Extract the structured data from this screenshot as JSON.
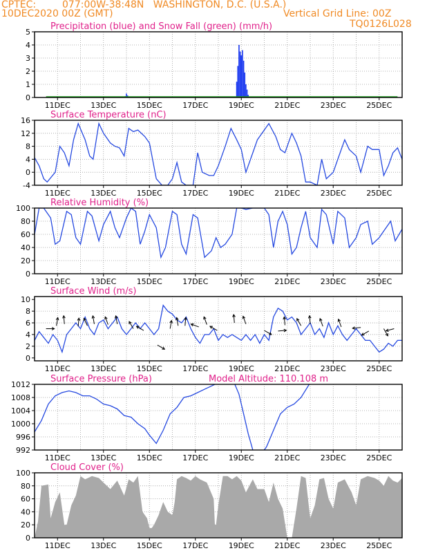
{
  "header": {
    "source": "CPTEC:",
    "location": "077:00W-38:48N   WASHINGTON, D.C. (U.S.A.)",
    "init_time": "10DEC2020 00Z (GMT)",
    "grid_note": "Vertical Grid Line: 00Z",
    "model": "TQ0126L028"
  },
  "colors": {
    "header": "#f08a24",
    "title": "#e0208a",
    "precip": "#1e3cf0",
    "snow": "#1aa01a",
    "line": "#2448e0",
    "cloud": "#a9a9a9"
  },
  "chart_data": [
    {
      "id": "precip",
      "type": "bar",
      "title": "Precipitation (blue) and Snow Fall (green) (mm/h)",
      "x_ticks": [
        "11DEC",
        "13DEC",
        "15DEC",
        "17DEC",
        "19DEC",
        "21DEC",
        "23DEC",
        "25DEC"
      ],
      "ylim": [
        0,
        5
      ],
      "yticks": [
        0,
        1,
        2,
        3,
        4,
        5
      ],
      "grid": true,
      "series": [
        {
          "name": "Precipitation",
          "color": "#1e3cf0",
          "x": [
            3.95,
            4.0,
            4.05,
            8.8,
            8.85,
            8.9,
            8.95,
            9.0,
            9.05,
            9.1,
            9.15,
            9.2,
            9.25,
            9.3
          ],
          "values": [
            0.1,
            0.3,
            0.15,
            1.2,
            2.4,
            4.0,
            3.5,
            3.2,
            3.6,
            2.8,
            1.9,
            1.0,
            0.6,
            0.2
          ]
        },
        {
          "name": "Snow Fall",
          "color": "#1aa01a",
          "x": [
            0.5,
            15.8
          ],
          "values": [
            0.05,
            0.05
          ]
        }
      ]
    },
    {
      "id": "temperature",
      "type": "line",
      "title": "Surface Temperature (nC)",
      "x_ticks": [
        "11DEC",
        "13DEC",
        "15DEC",
        "17DEC",
        "19DEC",
        "21DEC",
        "23DEC",
        "25DEC"
      ],
      "ylim": [
        -4,
        16
      ],
      "yticks": [
        -4,
        0,
        4,
        8,
        12,
        16
      ],
      "grid": true,
      "series": [
        {
          "name": "Temperature",
          "x": [
            0,
            0.2,
            0.4,
            0.55,
            0.9,
            1.1,
            1.3,
            1.5,
            1.7,
            1.9,
            2.2,
            2.4,
            2.55,
            2.8,
            3.0,
            3.3,
            3.5,
            3.7,
            3.9,
            4.1,
            4.3,
            4.5,
            4.8,
            5.0,
            5.3,
            5.55,
            5.8,
            6.0,
            6.2,
            6.4,
            6.6,
            6.9,
            7.1,
            7.3,
            7.6,
            7.8,
            8.0,
            8.3,
            8.55,
            8.8,
            9.0,
            9.2,
            9.5,
            9.7,
            9.9,
            10.2,
            10.5,
            10.7,
            10.9,
            11.2,
            11.4,
            11.6,
            11.8,
            12.0,
            12.3,
            12.5,
            12.7,
            13.0,
            13.2,
            13.5,
            13.7,
            14.0,
            14.2,
            14.5,
            14.7,
            15.0,
            15.2,
            15.4,
            15.6,
            15.8,
            16.0
          ],
          "values": [
            4.5,
            2,
            -2,
            -3,
            0,
            8,
            6,
            2,
            10,
            15,
            10,
            5,
            4,
            15,
            12,
            9,
            8,
            7.5,
            5,
            13.5,
            12.5,
            13,
            11,
            9,
            -2,
            -4,
            -4,
            -2,
            3,
            -3,
            -4,
            -4,
            6,
            0,
            -1,
            -1,
            2,
            8,
            13.5,
            10,
            7,
            0,
            6,
            10,
            12,
            15,
            11,
            7,
            6,
            12,
            9,
            5,
            -3,
            -3,
            -4,
            4,
            -2,
            0,
            4,
            10,
            7,
            5,
            0,
            8,
            7,
            7,
            -1,
            2,
            6,
            7.5,
            4
          ]
        }
      ]
    },
    {
      "id": "humidity",
      "type": "line",
      "title": "Relative Humidity (%)",
      "x_ticks": [
        "11DEC",
        "13DEC",
        "15DEC",
        "17DEC",
        "19DEC",
        "21DEC",
        "23DEC",
        "25DEC"
      ],
      "ylim": [
        0,
        100
      ],
      "yticks": [
        0,
        20,
        40,
        60,
        80,
        100
      ],
      "grid": true,
      "series": [
        {
          "name": "Relative Humidity",
          "x": [
            0,
            0.2,
            0.4,
            0.7,
            0.9,
            1.1,
            1.4,
            1.6,
            1.8,
            2.0,
            2.3,
            2.5,
            2.8,
            3.0,
            3.3,
            3.5,
            3.7,
            4.0,
            4.2,
            4.4,
            4.6,
            4.8,
            5.0,
            5.3,
            5.5,
            5.7,
            6.0,
            6.2,
            6.4,
            6.6,
            6.9,
            7.1,
            7.4,
            7.7,
            7.9,
            8.1,
            8.3,
            8.6,
            8.8,
            9.0,
            9.2,
            9.5,
            9.7,
            10.0,
            10.2,
            10.4,
            10.6,
            10.8,
            11.0,
            11.2,
            11.4,
            11.6,
            11.8,
            12.0,
            12.3,
            12.5,
            12.7,
            13.0,
            13.2,
            13.5,
            13.7,
            14.0,
            14.2,
            14.5,
            14.7,
            15.0,
            15.2,
            15.5,
            15.7,
            16.0
          ],
          "values": [
            60,
            100,
            100,
            85,
            45,
            50,
            95,
            90,
            55,
            45,
            95,
            88,
            50,
            75,
            95,
            70,
            55,
            85,
            100,
            95,
            45,
            65,
            90,
            70,
            25,
            40,
            95,
            90,
            45,
            30,
            90,
            85,
            25,
            35,
            55,
            40,
            45,
            60,
            100,
            100,
            98,
            100,
            100,
            100,
            90,
            40,
            80,
            95,
            75,
            30,
            40,
            70,
            95,
            55,
            40,
            98,
            90,
            45,
            95,
            85,
            40,
            55,
            75,
            80,
            45,
            55,
            65,
            80,
            50,
            68
          ]
        }
      ]
    },
    {
      "id": "wind",
      "type": "line",
      "title": "Surface Wind (m/s)",
      "x_ticks": [
        "11DEC",
        "13DEC",
        "15DEC",
        "17DEC",
        "19DEC",
        "21DEC",
        "23DEC",
        "25DEC"
      ],
      "ylim": [
        -0.5,
        10.5
      ],
      "yticks": [
        0,
        2,
        4,
        6,
        8,
        10
      ],
      "grid": true,
      "series": [
        {
          "name": "Wind Speed",
          "x": [
            0,
            0.2,
            0.4,
            0.6,
            0.8,
            1.0,
            1.2,
            1.4,
            1.6,
            1.8,
            2.0,
            2.2,
            2.4,
            2.6,
            2.8,
            3.0,
            3.2,
            3.4,
            3.6,
            3.8,
            4.0,
            4.2,
            4.4,
            4.6,
            4.8,
            5.0,
            5.2,
            5.4,
            5.6,
            5.8,
            6.0,
            6.2,
            6.4,
            6.6,
            6.8,
            7.0,
            7.2,
            7.4,
            7.6,
            7.8,
            8.0,
            8.2,
            8.4,
            8.6,
            8.8,
            9.0,
            9.2,
            9.4,
            9.6,
            9.8,
            10.0,
            10.2,
            10.4,
            10.6,
            10.8,
            11.0,
            11.2,
            11.4,
            11.6,
            11.8,
            12.0,
            12.2,
            12.4,
            12.6,
            12.8,
            13.0,
            13.2,
            13.4,
            13.6,
            13.8,
            14.0,
            14.2,
            14.4,
            14.6,
            14.8,
            15.0,
            15.2,
            15.4,
            15.6,
            15.8,
            16.0
          ],
          "values": [
            3,
            4.5,
            3.5,
            2.5,
            4,
            3,
            1,
            4,
            5,
            6,
            5,
            7,
            5,
            4,
            6,
            6.5,
            5,
            6,
            7,
            5,
            4,
            5,
            6,
            5,
            6,
            5,
            4,
            5,
            9,
            8,
            7.5,
            6.5,
            6,
            7,
            5,
            3.5,
            2.5,
            4,
            4,
            5,
            3,
            4,
            3.5,
            4,
            3.5,
            3,
            4,
            3,
            4,
            2.5,
            4,
            3,
            7,
            8.5,
            8,
            6.5,
            7,
            6,
            4,
            5,
            6,
            4,
            5,
            3.5,
            6,
            4,
            5.5,
            4,
            3,
            4,
            5,
            4,
            3,
            3,
            2,
            1,
            1.5,
            2.5,
            2,
            3,
            3
          ]
        }
      ],
      "arrows": [
        {
          "x": 0.5,
          "y": 5.0,
          "dir": 0
        },
        {
          "x": 0.95,
          "y": 5.5,
          "dir": 80
        },
        {
          "x": 1.3,
          "y": 5.8,
          "dir": 95
        },
        {
          "x": 1.9,
          "y": 5.4,
          "dir": 85
        },
        {
          "x": 2.3,
          "y": 5.5,
          "dir": 115
        },
        {
          "x": 2.6,
          "y": 5.8,
          "dir": 100
        },
        {
          "x": 3.2,
          "y": 5.7,
          "dir": 110
        },
        {
          "x": 3.6,
          "y": 5.8,
          "dir": 100
        },
        {
          "x": 4.3,
          "y": 5.0,
          "dir": 120
        },
        {
          "x": 4.75,
          "y": 4.7,
          "dir": 150
        },
        {
          "x": 5.35,
          "y": 2.2,
          "dir": 330
        },
        {
          "x": 5.9,
          "y": 5.0,
          "dir": 80
        },
        {
          "x": 6.25,
          "y": 5.5,
          "dir": 100
        },
        {
          "x": 6.55,
          "y": 5.5,
          "dir": 85
        },
        {
          "x": 7.15,
          "y": 5.3,
          "dir": 160
        },
        {
          "x": 7.5,
          "y": 5.7,
          "dir": 110
        },
        {
          "x": 7.95,
          "y": 4.7,
          "dir": 150
        },
        {
          "x": 8.7,
          "y": 6.0,
          "dir": 95
        },
        {
          "x": 9.2,
          "y": 5.8,
          "dir": 110
        },
        {
          "x": 10.0,
          "y": 4.7,
          "dir": 330
        },
        {
          "x": 10.6,
          "y": 4.6,
          "dir": 5
        },
        {
          "x": 10.9,
          "y": 5.6,
          "dir": 95
        },
        {
          "x": 11.6,
          "y": 5.5,
          "dir": 120
        },
        {
          "x": 12.0,
          "y": 5.8,
          "dir": 95
        },
        {
          "x": 12.55,
          "y": 5.4,
          "dir": 110
        },
        {
          "x": 13.35,
          "y": 5.3,
          "dir": 110
        },
        {
          "x": 14.2,
          "y": 5.2,
          "dir": 185
        },
        {
          "x": 14.55,
          "y": 4.6,
          "dir": 210
        },
        {
          "x": 15.2,
          "y": 5.0,
          "dir": 300
        },
        {
          "x": 15.65,
          "y": 5.0,
          "dir": 195
        }
      ]
    },
    {
      "id": "pressure",
      "type": "line",
      "title": "Surface Pressure (hPa)",
      "annotation": "Model Altitude: 110.108 m",
      "x_ticks": [
        "11DEC",
        "13DEC",
        "15DEC",
        "17DEC",
        "19DEC",
        "21DEC",
        "23DEC",
        "25DEC"
      ],
      "ylim": [
        992,
        1012
      ],
      "yticks": [
        992,
        996,
        1000,
        1004,
        1008,
        1012
      ],
      "grid": true,
      "series": [
        {
          "name": "Surface Pressure",
          "x": [
            0,
            0.3,
            0.6,
            0.9,
            1.2,
            1.5,
            1.8,
            2.1,
            2.4,
            2.7,
            3.0,
            3.3,
            3.6,
            3.9,
            4.2,
            4.5,
            4.8,
            5.0,
            5.3,
            5.6,
            5.9,
            6.2,
            6.5,
            6.8,
            7.1,
            7.4,
            7.7,
            8.0,
            8.3,
            8.6,
            8.9,
            9.1,
            9.3,
            9.5,
            9.8,
            10.1,
            10.4,
            10.7,
            11.0,
            11.3,
            11.6,
            12.0
          ],
          "values": [
            997.5,
            1001,
            1006,
            1008.5,
            1009.5,
            1010,
            1009.5,
            1008.5,
            1008.5,
            1007.5,
            1006,
            1005.5,
            1004.5,
            1002.5,
            1002,
            1000,
            998.5,
            996.5,
            994,
            998,
            1003,
            1005,
            1008,
            1008.5,
            1009.5,
            1010.5,
            1011.5,
            1012.5,
            1013.5,
            1014,
            1009,
            1003,
            997,
            992,
            990,
            993,
            998,
            1003,
            1005,
            1006,
            1008,
            1012.5
          ]
        }
      ]
    },
    {
      "id": "cloud",
      "type": "area",
      "title": "Cloud Cover (%)",
      "x_ticks": [
        "11DEC",
        "13DEC",
        "15DEC",
        "17DEC",
        "19DEC",
        "21DEC",
        "23DEC",
        "25DEC"
      ],
      "ylim": [
        0,
        100
      ],
      "yticks": [
        0,
        20,
        40,
        60,
        80,
        100
      ],
      "grid": true,
      "series": [
        {
          "name": "Cloud Cover",
          "x": [
            0,
            0.15,
            0.3,
            0.6,
            0.7,
            0.9,
            1.1,
            1.3,
            1.4,
            1.6,
            1.8,
            2.0,
            2.2,
            2.5,
            2.8,
            3.0,
            3.3,
            3.6,
            3.9,
            4.1,
            4.3,
            4.5,
            4.7,
            4.9,
            5.0,
            5.1,
            5.2,
            5.4,
            5.6,
            5.8,
            6.0,
            6.1,
            6.2,
            6.4,
            6.6,
            6.8,
            7.0,
            7.2,
            7.5,
            7.8,
            7.85,
            7.9,
            8.0,
            8.2,
            8.4,
            8.6,
            8.8,
            9.0,
            9.2,
            9.5,
            9.7,
            10.0,
            10.2,
            10.4,
            10.6,
            10.8,
            11.0,
            11.2,
            11.4,
            11.6,
            11.8,
            12.0,
            12.2,
            12.4,
            12.6,
            12.8,
            13.0,
            13.2,
            13.5,
            13.8,
            14.0,
            14.2,
            14.5,
            14.8,
            15.0,
            15.2,
            15.4,
            15.6,
            15.8,
            16.0
          ],
          "values": [
            0,
            25,
            80,
            82,
            30,
            55,
            70,
            20,
            20,
            50,
            65,
            95,
            90,
            95,
            92,
            85,
            75,
            88,
            65,
            90,
            85,
            95,
            40,
            30,
            15,
            15,
            20,
            35,
            55,
            40,
            35,
            55,
            90,
            95,
            92,
            88,
            95,
            90,
            85,
            60,
            20,
            20,
            50,
            95,
            95,
            90,
            95,
            88,
            70,
            90,
            75,
            75,
            55,
            85,
            60,
            45,
            0,
            0,
            45,
            95,
            92,
            30,
            50,
            90,
            92,
            60,
            45,
            85,
            90,
            70,
            50,
            90,
            95,
            92,
            88,
            80,
            95,
            88,
            85,
            92
          ]
        }
      ]
    }
  ]
}
